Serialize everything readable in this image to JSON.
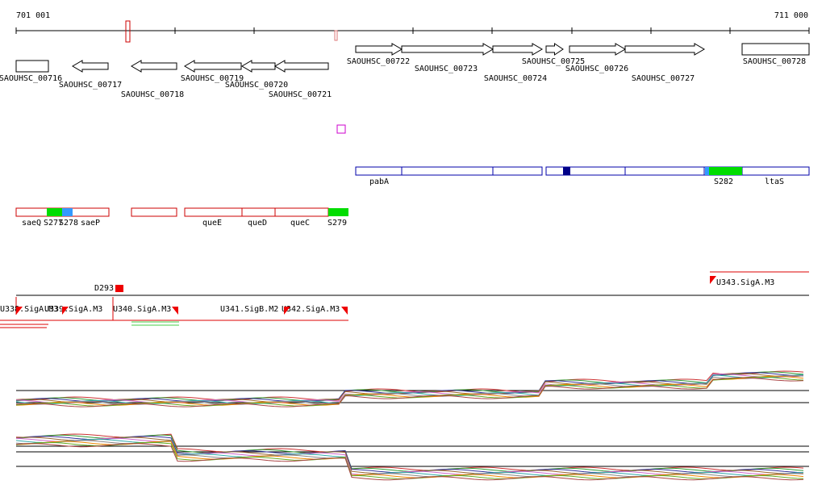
{
  "ruler": {
    "start": "701 001",
    "end": "711 000"
  },
  "genes": [
    "SAOUHSC_00716",
    "SAOUHSC_00717",
    "SAOUHSC_00718",
    "SAOUHSC_00719",
    "SAOUHSC_00720",
    "SAOUHSC_00721",
    "SAOUHSC_00722",
    "SAOUHSC_00723",
    "SAOUHSC_00724",
    "SAOUHSC_00725",
    "SAOUHSC_00726",
    "SAOUHSC_00727",
    "SAOUHSC_00728"
  ],
  "features_top": [
    "pabA",
    "S282",
    "ltaS"
  ],
  "features_bottom": [
    "saeQ",
    "S277",
    "S278",
    "saeP",
    "queE",
    "queD",
    "queC",
    "S279"
  ],
  "promoters": [
    "D293",
    "U338.SigA.M3",
    "U339.SigA.M3",
    "U340.SigA.M3",
    "U341.SigB.M2",
    "U342.SigA.M3",
    "U343.SigA.M3"
  ]
}
